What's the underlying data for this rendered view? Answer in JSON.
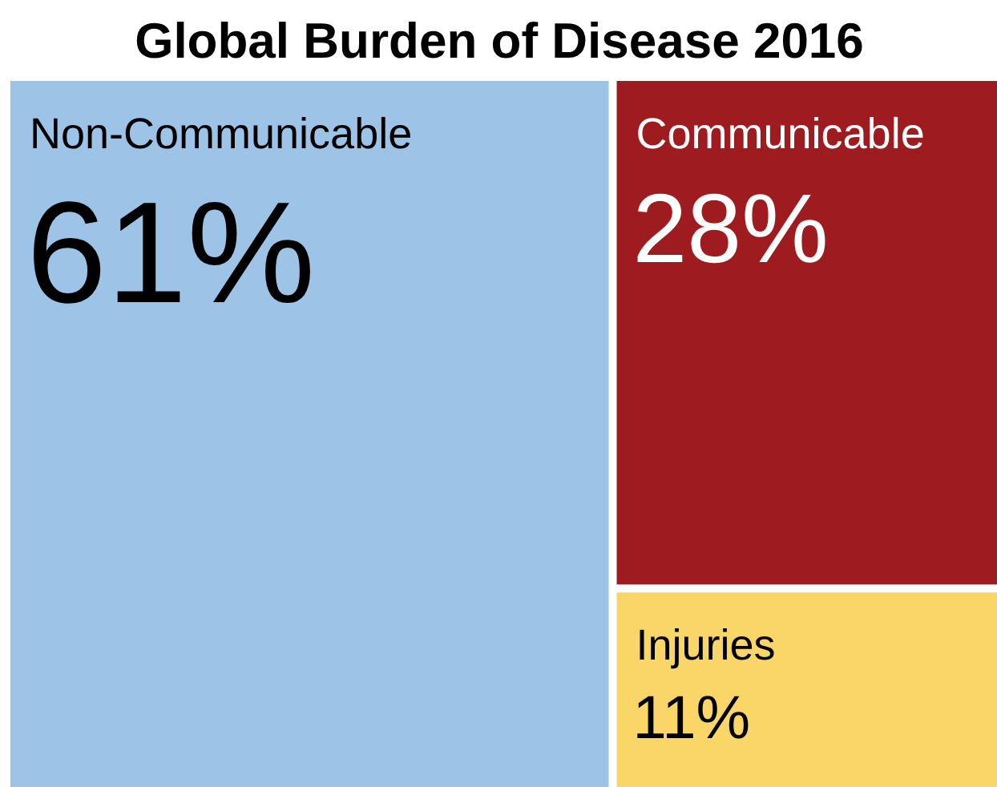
{
  "chart_data": {
    "type": "other",
    "title": "Global Burden of Disease 2016",
    "categories": [
      "Non-Communicable",
      "Communicable",
      "Injuries"
    ],
    "values": [
      61,
      28,
      11
    ],
    "value_labels": [
      "61%",
      "28%",
      "11%"
    ],
    "colors": [
      "#9dc3e6",
      "#9e1b20",
      "#fad669"
    ]
  }
}
